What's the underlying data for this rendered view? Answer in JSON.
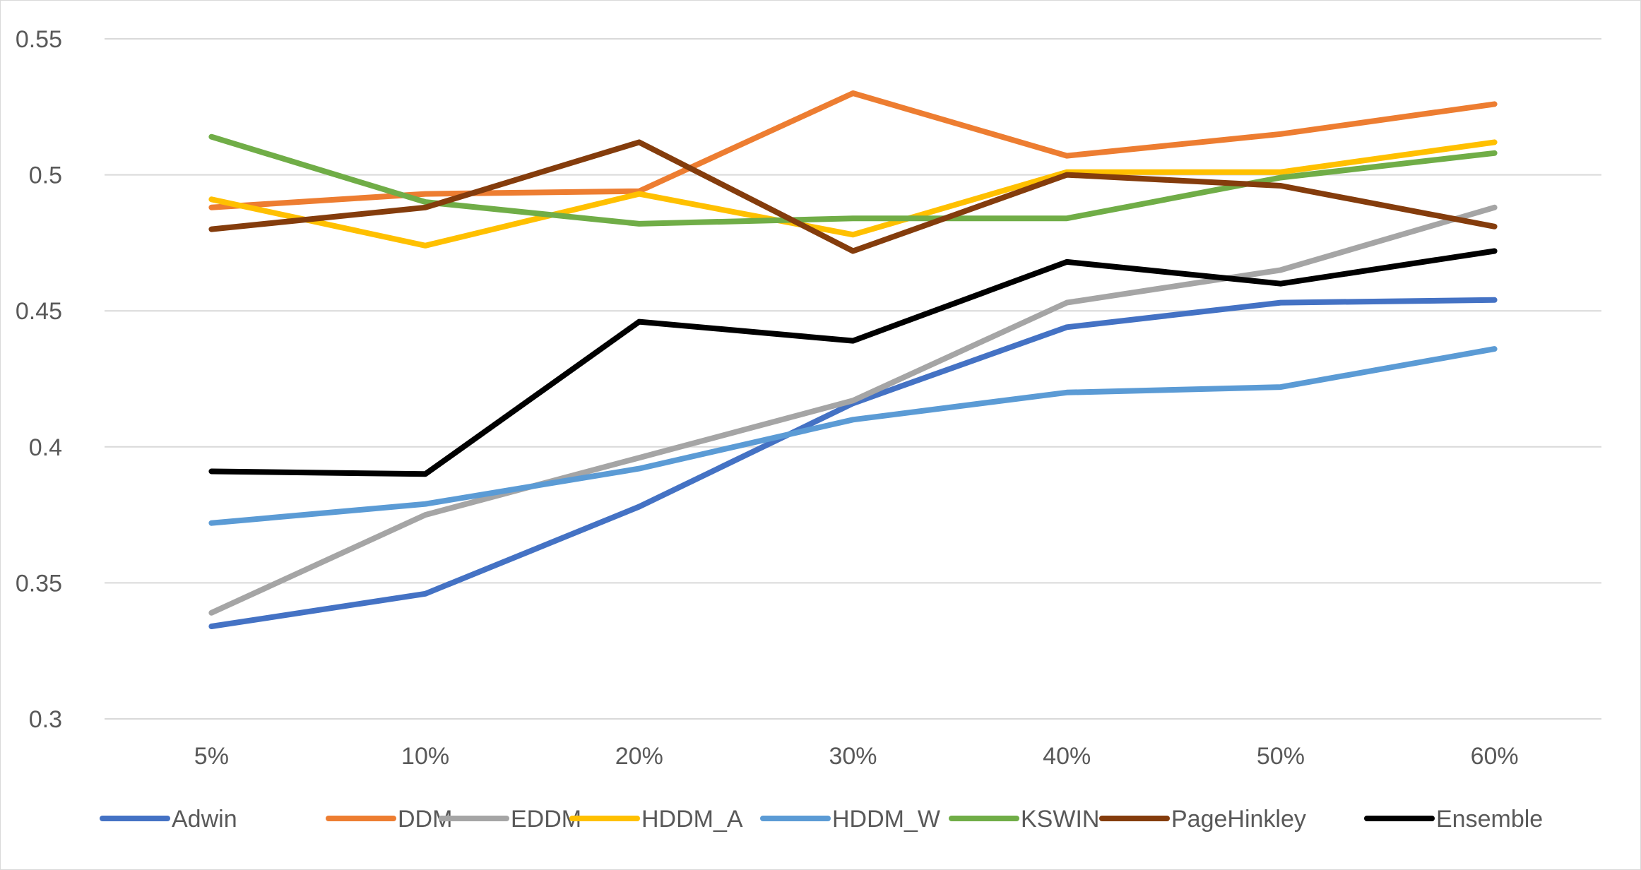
{
  "chart_data": {
    "type": "line",
    "title": "",
    "xlabel": "",
    "ylabel": "",
    "categories": [
      "5%",
      "10%",
      "20%",
      "30%",
      "40%",
      "50%",
      "60%"
    ],
    "ylim": [
      0.3,
      0.55
    ],
    "yticks": [
      "0.3",
      "0.35",
      "0.4",
      "0.45",
      "0.5",
      "0.55"
    ],
    "ytick_values": [
      0.3,
      0.35,
      0.4,
      0.45,
      0.5,
      0.55
    ],
    "grid": "horizontal",
    "legend_position": "bottom",
    "series": [
      {
        "name": "Adwin",
        "color": "#4472c4",
        "values": [
          0.334,
          0.346,
          0.378,
          0.416,
          0.444,
          0.453,
          0.454
        ]
      },
      {
        "name": "DDM",
        "color": "#ed7d31",
        "values": [
          0.488,
          0.493,
          0.494,
          0.53,
          0.507,
          0.515,
          0.526
        ]
      },
      {
        "name": "EDDM",
        "color": "#a5a5a5",
        "values": [
          0.339,
          0.375,
          0.396,
          0.417,
          0.453,
          0.465,
          0.488
        ]
      },
      {
        "name": "HDDM_A",
        "color": "#ffc000",
        "values": [
          0.491,
          0.474,
          0.493,
          0.478,
          0.501,
          0.501,
          0.512
        ]
      },
      {
        "name": "HDDM_W",
        "color": "#5b9bd5",
        "values": [
          0.372,
          0.379,
          0.392,
          0.41,
          0.42,
          0.422,
          0.436
        ]
      },
      {
        "name": "KSWIN",
        "color": "#70ad47",
        "values": [
          0.514,
          0.49,
          0.482,
          0.484,
          0.484,
          0.499,
          0.508
        ]
      },
      {
        "name": "PageHinkley",
        "color": "#843c0c",
        "values": [
          0.48,
          0.488,
          0.512,
          0.472,
          0.5,
          0.496,
          0.481
        ]
      },
      {
        "name": "Ensemble",
        "color": "#000000",
        "values": [
          0.391,
          0.39,
          0.446,
          0.439,
          0.468,
          0.46,
          0.472
        ]
      }
    ]
  }
}
